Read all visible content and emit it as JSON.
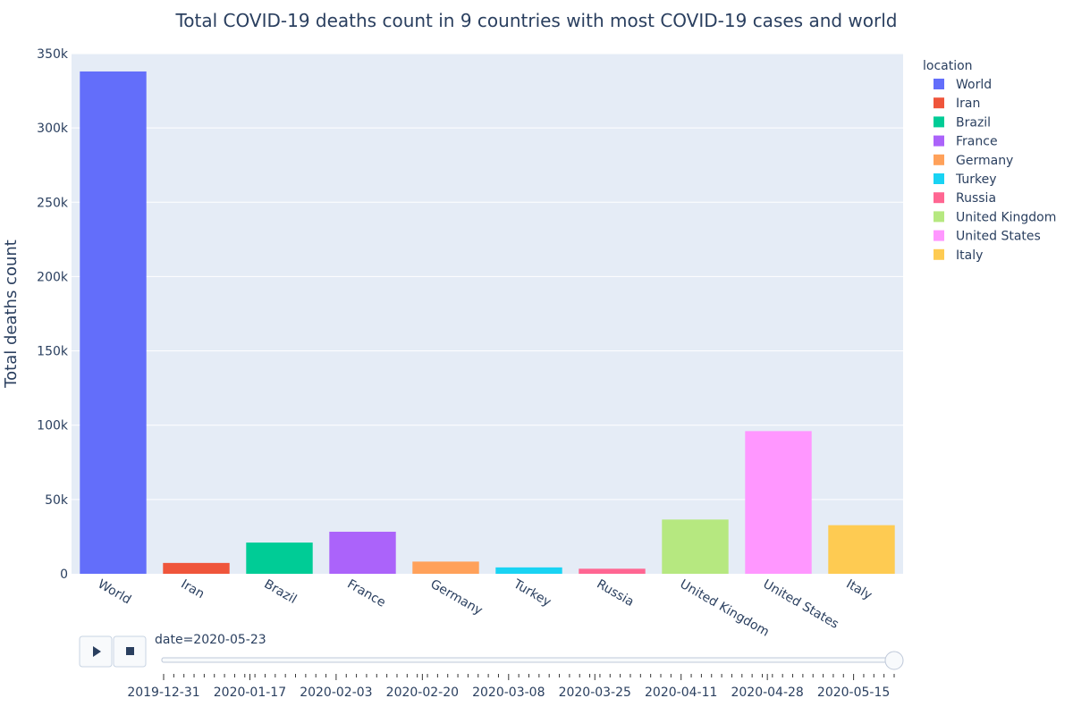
{
  "chart_data": {
    "type": "bar",
    "title": "Total COVID-19 deaths count in 9 countries with most COVID-19 cases and world",
    "xlabel": "",
    "ylabel": "Total deaths count",
    "ylim": [
      0,
      350000
    ],
    "yticks": [
      0,
      50000,
      100000,
      150000,
      200000,
      250000,
      300000,
      350000
    ],
    "ytick_labels": [
      "0",
      "50k",
      "100k",
      "150k",
      "200k",
      "250k",
      "300k",
      "350k"
    ],
    "categories": [
      "World",
      "Iran",
      "Brazil",
      "France",
      "Germany",
      "Turkey",
      "Russia",
      "United Kingdom",
      "United States",
      "Italy"
    ],
    "values": [
      338000,
      7300,
      21000,
      28300,
      8200,
      4300,
      3400,
      36500,
      96000,
      32700
    ],
    "colors": [
      "#636efa",
      "#EF553B",
      "#00cc96",
      "#ab63fa",
      "#FFA15A",
      "#19d3f3",
      "#FF6692",
      "#B6E880",
      "#FF97FF",
      "#FECB52"
    ],
    "grid": true,
    "legend": {
      "title": "location",
      "placement": "right",
      "items": [
        "World",
        "Iran",
        "Brazil",
        "France",
        "Germany",
        "Turkey",
        "Russia",
        "United Kingdom",
        "United States",
        "Italy"
      ]
    }
  },
  "slider": {
    "current_label": "date=2020-05-23",
    "value_fraction": 1.0,
    "tick_labels": [
      "2019-12-31",
      "2020-01-17",
      "2020-02-03",
      "2020-02-20",
      "2020-03-08",
      "2020-03-25",
      "2020-04-11",
      "2020-04-28",
      "2020-05-15"
    ],
    "play_icon": "play-icon",
    "stop_icon": "stop-icon"
  },
  "colors": {
    "plot_bg": "#e5ecf6",
    "grid": "#ffffff",
    "text": "#2a3f5f"
  }
}
